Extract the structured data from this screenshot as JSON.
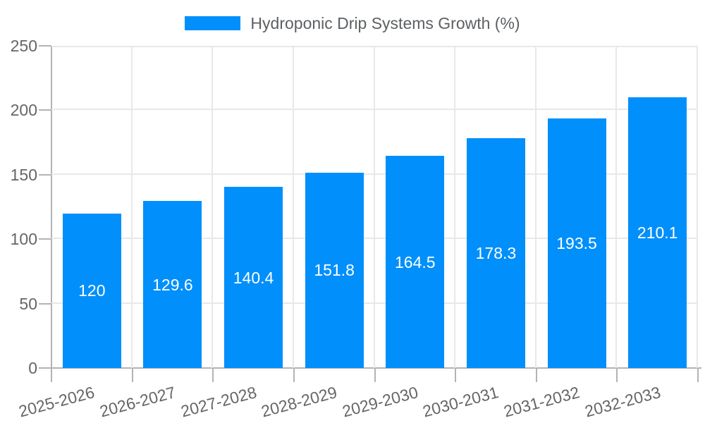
{
  "legend": {
    "label": "Hydroponic Drip Systems Growth (%)"
  },
  "chart_data": {
    "type": "bar",
    "title": "Hydroponic Drip Systems Growth (%)",
    "categories": [
      "2025-2026",
      "2026-2027",
      "2027-2028",
      "2028-2029",
      "2029-2030",
      "2030-2031",
      "2031-2032",
      "2032-2033"
    ],
    "values": [
      120,
      129.6,
      140.4,
      151.8,
      164.5,
      178.3,
      193.5,
      210.1
    ],
    "value_labels": [
      "120",
      "129.6",
      "140.4",
      "151.8",
      "164.5",
      "178.3",
      "193.5",
      "210.1"
    ],
    "xlabel": "",
    "ylabel": "",
    "ylim": [
      0,
      250
    ],
    "yticks": [
      0,
      50,
      100,
      150,
      200,
      250
    ],
    "grid": true,
    "legend_position": "top-center",
    "label_rotation_deg": -15
  },
  "colors": {
    "bar": "#008FFB",
    "grid": "#e8e8e8",
    "axis": "#b3b3b3",
    "axis_label": "#666666",
    "legend_text": "#5d6063",
    "value_text": "#ffffff",
    "background": "#ffffff"
  }
}
